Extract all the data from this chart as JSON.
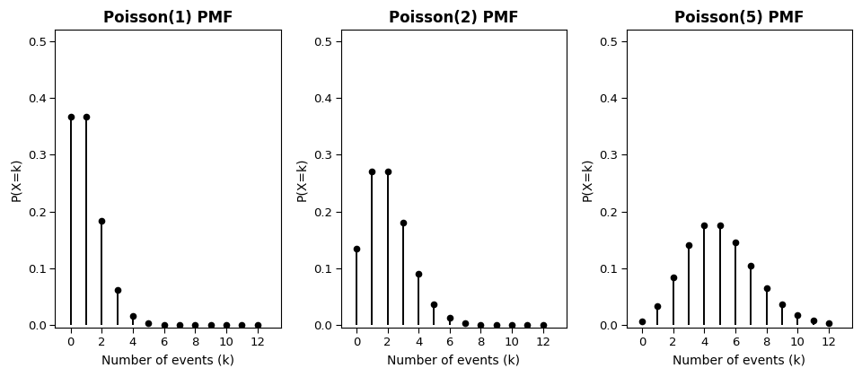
{
  "lambdas": [
    1,
    2,
    5
  ],
  "titles": [
    "Poisson(1) PMF",
    "Poisson(2) PMF",
    "Poisson(5) PMF"
  ],
  "k_max": 12,
  "ylim": [
    -0.005,
    0.52
  ],
  "yticks": [
    0.0,
    0.1,
    0.2,
    0.3,
    0.4,
    0.5
  ],
  "xticks": [
    0,
    2,
    4,
    6,
    8,
    10,
    12
  ],
  "xlim": [
    -1.0,
    13.5
  ],
  "xlabel": "Number of events (k)",
  "ylabel": "P(X=k)",
  "line_color": "#000000",
  "marker_color": "#000000",
  "marker_size": 5.5,
  "line_width": 1.4,
  "title_fontsize": 12,
  "label_fontsize": 10,
  "tick_fontsize": 9.5,
  "background_color": "#ffffff",
  "fig_background": "#ffffff"
}
